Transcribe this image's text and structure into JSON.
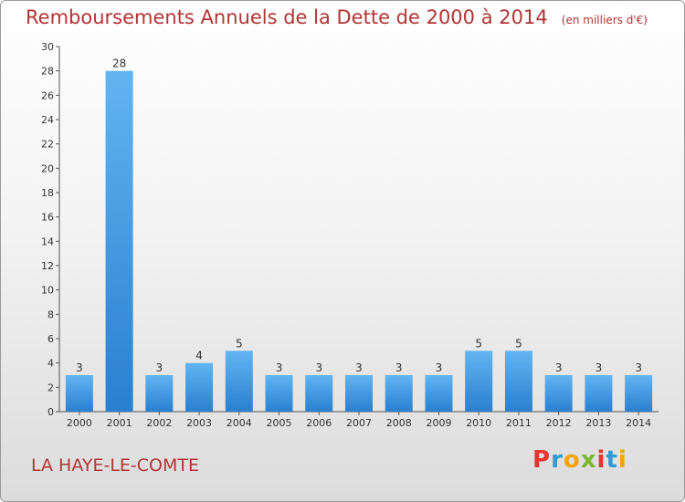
{
  "title": "Remboursements Annuels de la Dette de 2000 à 2014",
  "unit_note": "(en milliers d'€)",
  "town": "LA HAYE-LE-COMTE",
  "logo": {
    "letters": [
      "P",
      "r",
      "o",
      "x",
      "i",
      "t",
      "i"
    ],
    "colors": [
      "#e8352d",
      "#2f9bd3",
      "#f2a40b",
      "#7ab730",
      "#e8352d",
      "#2f9bd3",
      "#f2a40b"
    ]
  },
  "colors": {
    "title": "#b23434",
    "bar": "#3a8fdb"
  },
  "chart_data": {
    "type": "bar",
    "categories": [
      "2000",
      "2001",
      "2002",
      "2003",
      "2004",
      "2005",
      "2006",
      "2007",
      "2008",
      "2009",
      "2010",
      "2011",
      "2012",
      "2013",
      "2014"
    ],
    "values": [
      3,
      28,
      3,
      4,
      5,
      3,
      3,
      3,
      3,
      3,
      5,
      5,
      3,
      3,
      3
    ],
    "ylim": [
      0,
      30
    ],
    "yticks": [
      0,
      2,
      4,
      6,
      8,
      10,
      12,
      14,
      16,
      18,
      20,
      22,
      24,
      26,
      28,
      30
    ],
    "grid": false
  }
}
